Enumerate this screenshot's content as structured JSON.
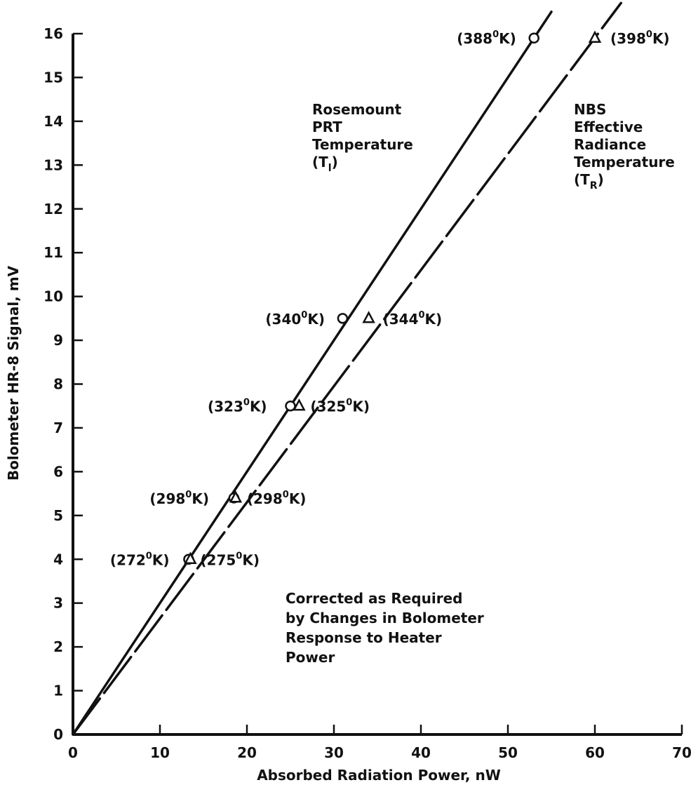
{
  "chart_data": {
    "type": "line",
    "title": "",
    "xlabel": "Absorbed Radiation Power, nW",
    "ylabel": "Bolometer HR-8 Signal, mV",
    "xlim": [
      0,
      70
    ],
    "ylim": [
      0,
      16
    ],
    "xticks": [
      "0",
      "10",
      "20",
      "30",
      "40",
      "50",
      "60",
      "70"
    ],
    "yticks": [
      "0",
      "1",
      "2",
      "3",
      "4",
      "5",
      "6",
      "7",
      "8",
      "9",
      "10",
      "11",
      "12",
      "13",
      "14",
      "15",
      "16"
    ],
    "grid": false,
    "series": [
      {
        "key": "prt",
        "label_lines": [
          "Rosemount",
          "PRT",
          "Temperature",
          "(T",
          "l",
          ")"
        ],
        "marker": "circle",
        "line_style": "solid",
        "points": [
          {
            "x": 13.3,
            "y": 4.0,
            "label": "(272",
            "label_sup": "0",
            "label_tail": "K)"
          },
          {
            "x": 18.5,
            "y": 5.4,
            "label": "(298",
            "label_sup": "0",
            "label_tail": "K)"
          },
          {
            "x": 25.0,
            "y": 7.5,
            "label": "(323",
            "label_sup": "0",
            "label_tail": "K)"
          },
          {
            "x": 31.0,
            "y": 9.5,
            "label": "(340",
            "label_sup": "0",
            "label_tail": "K)"
          },
          {
            "x": 53.0,
            "y": 15.9,
            "label": "(388",
            "label_sup": "0",
            "label_tail": "K)"
          }
        ],
        "line": [
          [
            0,
            0
          ],
          [
            55,
            16.5
          ]
        ]
      },
      {
        "key": "nbs",
        "label_lines": [
          "NBS",
          "Effective",
          "Radiance",
          "Temperature",
          "(T",
          "R",
          ")"
        ],
        "marker": "triangle",
        "line_style": "dashed",
        "points": [
          {
            "x": 13.5,
            "y": 4.0,
            "label": "(275",
            "label_sup": "0",
            "label_tail": "K)"
          },
          {
            "x": 18.7,
            "y": 5.4,
            "label": "(298",
            "label_sup": "0",
            "label_tail": "K)"
          },
          {
            "x": 26.0,
            "y": 7.5,
            "label": "(325",
            "label_sup": "0",
            "label_tail": "K)"
          },
          {
            "x": 34.0,
            "y": 9.5,
            "label": "(344",
            "label_sup": "0",
            "label_tail": "K)"
          },
          {
            "x": 60.0,
            "y": 15.9,
            "label": "(398",
            "label_sup": "0",
            "label_tail": "K)"
          }
        ],
        "line": [
          [
            0,
            0
          ],
          [
            63,
            16.7
          ]
        ]
      }
    ],
    "annotation_lines": [
      "Corrected as Required",
      "by Changes in Bolometer",
      "Response to Heater",
      "Power"
    ]
  }
}
